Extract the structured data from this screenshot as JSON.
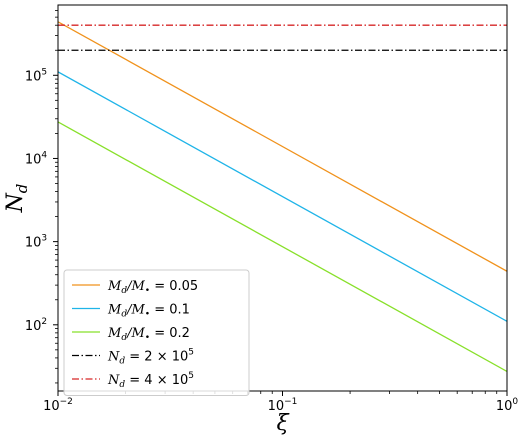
{
  "chart_data": {
    "type": "line",
    "xscale": "log",
    "yscale": "log",
    "xlim": [
      0.01,
      1
    ],
    "ylim": [
      16,
      700000
    ],
    "xlabel": "ξ",
    "ylabel_main": "N",
    "ylabel_sub": "d",
    "xticks": [
      {
        "value": 0.01,
        "base": "10",
        "exp": "−2"
      },
      {
        "value": 0.1,
        "base": "10",
        "exp": "−1"
      },
      {
        "value": 1,
        "base": "10",
        "exp": "0"
      }
    ],
    "yticks": [
      {
        "value": 100,
        "base": "10",
        "exp": "2"
      },
      {
        "value": 1000,
        "base": "10",
        "exp": "3"
      },
      {
        "value": 10000,
        "base": "10",
        "exp": "4"
      },
      {
        "value": 100000,
        "base": "10",
        "exp": "5"
      }
    ],
    "legend_position": "lower-left",
    "grid": false,
    "series": [
      {
        "name": "M_d/M_• = 0.05",
        "label_main": "M",
        "label_sub1": "d",
        "label_mid": "/M",
        "label_sub2": "•",
        "label_tail": " = 0.05",
        "color": "#f0921c",
        "dash": "solid",
        "x": [
          0.01,
          1
        ],
        "y": [
          440000,
          440
        ]
      },
      {
        "name": "M_d/M_• = 0.1",
        "label_main": "M",
        "label_sub1": "d",
        "label_mid": "/M",
        "label_sub2": "•",
        "label_tail": " = 0.1",
        "color": "#1fb4e8",
        "dash": "solid",
        "x": [
          0.01,
          1
        ],
        "y": [
          110000,
          110
        ]
      },
      {
        "name": "M_d/M_• = 0.2",
        "label_main": "M",
        "label_sub1": "d",
        "label_mid": "/M",
        "label_sub2": "•",
        "label_tail": " = 0.2",
        "color": "#88e02a",
        "dash": "solid",
        "x": [
          0.01,
          1
        ],
        "y": [
          27500,
          27.5
        ]
      },
      {
        "name": "N_d = 2 × 10^5",
        "label_main": "N",
        "label_sub1": "d",
        "label_mid": "",
        "label_sub2": "",
        "label_tail": " = 2 × 10",
        "label_exp": "5",
        "color": "#000000",
        "dash": "dashdot",
        "x": [
          0.01,
          1
        ],
        "y": [
          200000,
          200000
        ]
      },
      {
        "name": "N_d = 4 × 10^5",
        "label_main": "N",
        "label_sub1": "d",
        "label_mid": "",
        "label_sub2": "",
        "label_tail": " = 4 × 10",
        "label_exp": "5",
        "color": "#d62728",
        "dash": "dashdot",
        "x": [
          0.01,
          1
        ],
        "y": [
          400000,
          400000
        ]
      }
    ]
  }
}
